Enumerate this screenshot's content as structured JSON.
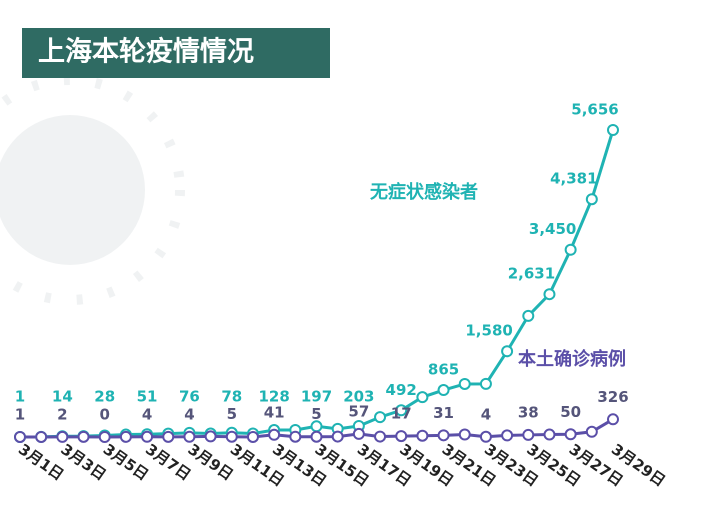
{
  "chart_data": {
    "type": "line",
    "title": "上海本轮疫情情况",
    "categories": [
      "3月1日",
      null,
      "3月3日",
      null,
      "3月5日",
      null,
      "3月7日",
      null,
      "3月9日",
      null,
      "3月11日",
      null,
      "3月13日",
      null,
      "3月15日",
      null,
      "3月17日",
      null,
      "3月19日",
      null,
      "3月21日",
      null,
      "3月23日",
      null,
      "3月25日",
      null,
      "3月27日",
      null,
      "3月29日"
    ],
    "series": [
      {
        "name": "无症状感染者",
        "color": "#1fb3b3",
        "values": [
          1,
          3,
          14,
          16,
          28,
          45,
          51,
          62,
          76,
          64,
          78,
          64,
          128,
          130,
          197,
          150,
          203,
          366,
          492,
          734,
          865,
          977,
          979,
          1580,
          2231,
          2631,
          3450,
          4381,
          5656
        ],
        "value_labels": [
          "1",
          null,
          "14",
          null,
          "28",
          null,
          "51",
          null,
          "76",
          null,
          "78",
          null,
          "128",
          null,
          "197",
          null,
          "203",
          null,
          "492",
          null,
          "865",
          null,
          null,
          "1,580",
          null,
          "2,631",
          "3,450",
          "4,381",
          "5,656"
        ]
      },
      {
        "name": "本土确诊病例",
        "color": "#5b4fa8",
        "values": [
          1,
          1,
          2,
          3,
          0,
          3,
          4,
          3,
          4,
          11,
          5,
          1,
          41,
          5,
          5,
          8,
          57,
          8,
          17,
          24,
          31,
          46,
          4,
          29,
          38,
          45,
          50,
          96,
          326
        ],
        "value_labels": [
          "1",
          null,
          "2",
          null,
          "0",
          null,
          "4",
          null,
          "4",
          null,
          "5",
          null,
          "41",
          null,
          "5",
          null,
          "57",
          null,
          "17",
          null,
          "31",
          null,
          "4",
          null,
          "38",
          null,
          "50",
          null,
          "326"
        ]
      }
    ]
  }
}
